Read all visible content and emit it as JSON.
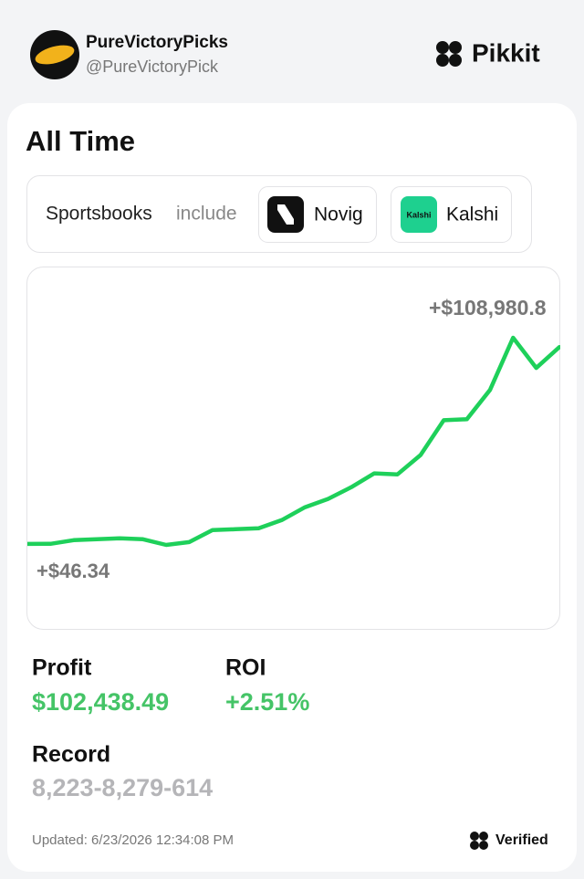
{
  "header": {
    "name": "PureVictoryPicks",
    "handle": "@PureVictoryPick",
    "brand": "Pikkit"
  },
  "card": {
    "title": "All Time",
    "sportsbooks_label": "Sportsbooks",
    "include": "include",
    "books": [
      "Novig",
      "Kalshi"
    ],
    "kalshi_logo": "Kalshi",
    "stats": {
      "profit_label": "Profit",
      "profit": "$102,438.49",
      "roi_label": "ROI",
      "roi": "+2.51%",
      "record_label": "Record",
      "record": "8,223-8,279-614"
    },
    "footer": {
      "updated": "Updated: 6/23/2026 12:34:08 PM",
      "verified": "Verified"
    }
  },
  "chart_data": {
    "type": "line",
    "color": "#1ed05a",
    "values": [
      46.34,
      100,
      2000,
      2500,
      3000,
      2500,
      -500,
      1000,
      7300,
      7800,
      8300,
      12600,
      19400,
      23800,
      30000,
      37300,
      36800,
      47000,
      65400,
      65900,
      81400,
      108980.8,
      93000,
      104000
    ],
    "annotations": [
      "+$108,980.8",
      "+$46.34"
    ]
  }
}
